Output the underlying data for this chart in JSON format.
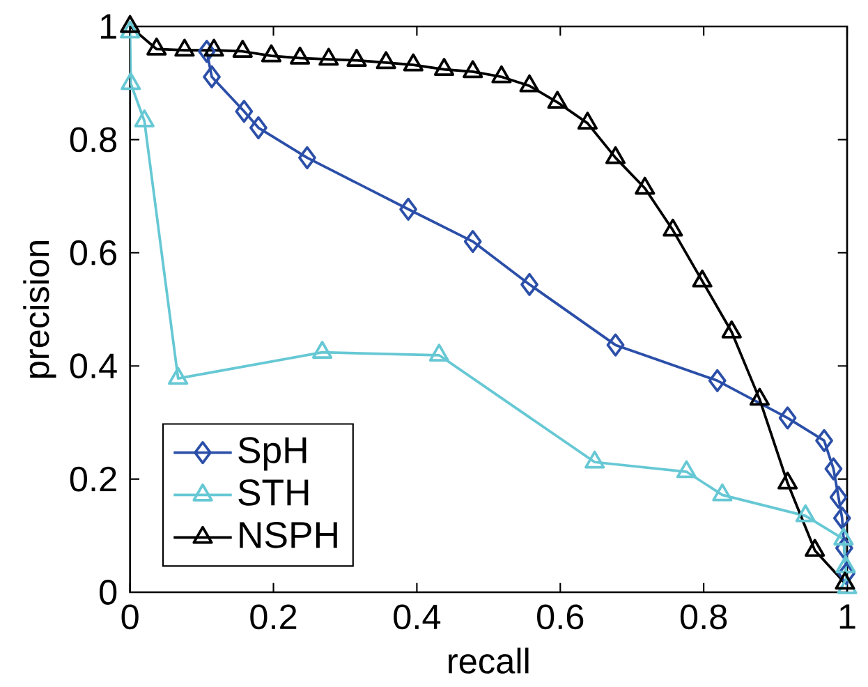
{
  "chart_data": {
    "type": "line",
    "xlabel": "recall",
    "ylabel": "precision",
    "xlim": [
      0,
      1
    ],
    "ylim": [
      0,
      1
    ],
    "xticks": [
      0,
      0.2,
      0.4,
      0.6,
      0.8,
      1
    ],
    "yticks": [
      0,
      0.2,
      0.4,
      0.6,
      0.8,
      1
    ],
    "grid": false,
    "legend": "bottom left",
    "series": [
      {
        "name": "SpH",
        "color": "#2b4fa8",
        "marker": "diamond",
        "x": [
          0.107,
          0.114,
          0.159,
          0.179,
          0.247,
          0.388,
          0.478,
          0.557,
          0.677,
          0.819,
          0.917,
          0.968,
          0.981,
          0.988,
          0.993,
          0.996,
          0.999
        ],
        "values": [
          0.956,
          0.911,
          0.85,
          0.821,
          0.768,
          0.677,
          0.62,
          0.544,
          0.437,
          0.374,
          0.308,
          0.268,
          0.218,
          0.168,
          0.131,
          0.078,
          0.033
        ]
      },
      {
        "name": "STH",
        "color": "#66c8d4",
        "marker": "triangle",
        "x": [
          0,
          0.001,
          0.02,
          0.067,
          0.268,
          0.431,
          0.648,
          0.776,
          0.826,
          0.942,
          0.995,
          0.998,
          1.0
        ],
        "values": [
          0.99,
          0.899,
          0.833,
          0.378,
          0.424,
          0.419,
          0.23,
          0.213,
          0.172,
          0.135,
          0.094,
          0.045,
          0.008
        ]
      },
      {
        "name": "NSPH",
        "color": "#000000",
        "marker": "triangle",
        "x": [
          0,
          0.037,
          0.076,
          0.117,
          0.157,
          0.197,
          0.237,
          0.277,
          0.316,
          0.357,
          0.395,
          0.438,
          0.478,
          0.518,
          0.557,
          0.596,
          0.638,
          0.677,
          0.718,
          0.757,
          0.798,
          0.839,
          0.878,
          0.917,
          0.955,
          0.997
        ],
        "values": [
          1.0,
          0.96,
          0.958,
          0.958,
          0.956,
          0.948,
          0.944,
          0.942,
          0.94,
          0.936,
          0.932,
          0.924,
          0.92,
          0.911,
          0.895,
          0.866,
          0.829,
          0.768,
          0.714,
          0.64,
          0.55,
          0.46,
          0.341,
          0.193,
          0.074,
          0.016
        ]
      }
    ]
  }
}
